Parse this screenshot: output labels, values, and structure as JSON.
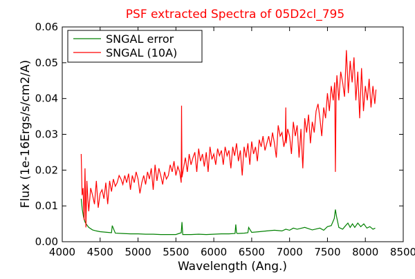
{
  "chart_data": {
    "type": "line",
    "title": "PSF extracted Spectra of 05D2cl_795",
    "title_color": "#ff0000",
    "xlabel": "Wavelength (Ang.)",
    "ylabel": "Flux (1e-16Ergs/s/cm2/A)",
    "xlim": [
      4000,
      8500
    ],
    "ylim": [
      0,
      0.06
    ],
    "xticks": [
      "4000",
      "4500",
      "5000",
      "5500",
      "6000",
      "6500",
      "7000",
      "7500",
      "8000",
      "8500"
    ],
    "yticks": [
      "0.00",
      "0.01",
      "0.02",
      "0.03",
      "0.04",
      "0.05",
      "0.06"
    ],
    "grid": false,
    "legend_position": "top-left",
    "series": [
      {
        "name": "SNGAL error",
        "color": "#008000",
        "x": [
          4250,
          4265,
          4280,
          4300,
          4320,
          4350,
          4400,
          4450,
          4500,
          4600,
          4650,
          4660,
          4700,
          4800,
          4900,
          5000,
          5100,
          5200,
          5300,
          5400,
          5500,
          5570,
          5580,
          5590,
          5700,
          5800,
          5900,
          6000,
          6100,
          6200,
          6280,
          6290,
          6300,
          6310,
          6400,
          6450,
          6460,
          6500,
          6600,
          6700,
          6800,
          6900,
          6950,
          7000,
          7050,
          7100,
          7200,
          7300,
          7400,
          7450,
          7500,
          7550,
          7590,
          7605,
          7620,
          7650,
          7700,
          7740,
          7770,
          7800,
          7830,
          7860,
          7900,
          7940,
          7980,
          8020,
          8060,
          8100,
          8130
        ],
        "values": [
          0.012,
          0.009,
          0.007,
          0.0055,
          0.0048,
          0.004,
          0.0033,
          0.003,
          0.0028,
          0.0026,
          0.0025,
          0.0045,
          0.0024,
          0.0023,
          0.0022,
          0.0022,
          0.0021,
          0.0021,
          0.002,
          0.002,
          0.002,
          0.0025,
          0.0055,
          0.002,
          0.002,
          0.0021,
          0.002,
          0.0021,
          0.0022,
          0.0022,
          0.0023,
          0.0048,
          0.0025,
          0.0023,
          0.0024,
          0.0025,
          0.004,
          0.0026,
          0.0028,
          0.003,
          0.0032,
          0.003,
          0.0035,
          0.0032,
          0.0038,
          0.0035,
          0.004,
          0.0033,
          0.0038,
          0.0032,
          0.0042,
          0.0045,
          0.0065,
          0.009,
          0.007,
          0.004,
          0.0035,
          0.0045,
          0.0052,
          0.004,
          0.005,
          0.004,
          0.0052,
          0.0042,
          0.005,
          0.0038,
          0.0042,
          0.0035,
          0.0038
        ]
      },
      {
        "name": "SNGAL (10A)",
        "color": "#ff0000",
        "x": [
          4250,
          4262,
          4275,
          4288,
          4300,
          4312,
          4325,
          4338,
          4350,
          4375,
          4400,
          4425,
          4450,
          4475,
          4500,
          4525,
          4550,
          4575,
          4600,
          4625,
          4650,
          4675,
          4700,
          4725,
          4750,
          4775,
          4800,
          4825,
          4850,
          4875,
          4900,
          4925,
          4950,
          4975,
          5000,
          5025,
          5050,
          5075,
          5100,
          5125,
          5150,
          5175,
          5200,
          5225,
          5250,
          5275,
          5300,
          5325,
          5350,
          5375,
          5400,
          5425,
          5450,
          5475,
          5500,
          5525,
          5550,
          5570,
          5575,
          5580,
          5600,
          5625,
          5650,
          5675,
          5700,
          5725,
          5750,
          5775,
          5800,
          5825,
          5850,
          5875,
          5900,
          5925,
          5950,
          5975,
          6000,
          6025,
          6050,
          6075,
          6100,
          6125,
          6150,
          6175,
          6200,
          6225,
          6250,
          6275,
          6300,
          6325,
          6350,
          6375,
          6400,
          6425,
          6450,
          6475,
          6500,
          6525,
          6550,
          6575,
          6600,
          6625,
          6650,
          6675,
          6700,
          6725,
          6750,
          6775,
          6800,
          6825,
          6850,
          6875,
          6900,
          6925,
          6945,
          6950,
          6955,
          6975,
          7000,
          7025,
          7050,
          7075,
          7100,
          7125,
          7150,
          7175,
          7200,
          7225,
          7250,
          7275,
          7300,
          7325,
          7350,
          7375,
          7400,
          7425,
          7450,
          7475,
          7500,
          7525,
          7550,
          7575,
          7595,
          7605,
          7615,
          7625,
          7650,
          7675,
          7700,
          7725,
          7750,
          7775,
          7800,
          7825,
          7850,
          7875,
          7900,
          7925,
          7950,
          7975,
          8000,
          8025,
          8050,
          8075,
          8100,
          8125,
          8140
        ],
        "values": [
          0.0245,
          0.013,
          0.015,
          0.006,
          0.0205,
          0.004,
          0.017,
          0.012,
          0.0085,
          0.015,
          0.013,
          0.0105,
          0.017,
          0.0095,
          0.0135,
          0.0145,
          0.012,
          0.0165,
          0.0105,
          0.017,
          0.014,
          0.0175,
          0.0155,
          0.0165,
          0.0185,
          0.0175,
          0.016,
          0.0185,
          0.0165,
          0.019,
          0.0145,
          0.0185,
          0.0165,
          0.0195,
          0.0175,
          0.0135,
          0.0165,
          0.0185,
          0.016,
          0.0195,
          0.0175,
          0.0205,
          0.0145,
          0.0215,
          0.017,
          0.0205,
          0.0185,
          0.016,
          0.0195,
          0.0175,
          0.0185,
          0.0215,
          0.0195,
          0.0225,
          0.0185,
          0.021,
          0.0195,
          0.0165,
          0.038,
          0.018,
          0.0205,
          0.0235,
          0.0195,
          0.0245,
          0.0215,
          0.0235,
          0.025,
          0.0195,
          0.026,
          0.0225,
          0.0245,
          0.021,
          0.025,
          0.0195,
          0.0265,
          0.023,
          0.0245,
          0.0215,
          0.026,
          0.024,
          0.0255,
          0.0215,
          0.0265,
          0.024,
          0.0255,
          0.0205,
          0.0265,
          0.024,
          0.0275,
          0.0225,
          0.0255,
          0.0185,
          0.0265,
          0.0235,
          0.0275,
          0.0215,
          0.028,
          0.0245,
          0.0265,
          0.0225,
          0.0285,
          0.0265,
          0.0295,
          0.0255,
          0.0275,
          0.0295,
          0.0265,
          0.0305,
          0.0275,
          0.0235,
          0.0325,
          0.0295,
          0.0305,
          0.0265,
          0.0285,
          0.0375,
          0.0275,
          0.0315,
          0.0295,
          0.0245,
          0.0335,
          0.0295,
          0.0325,
          0.0235,
          0.0315,
          0.0205,
          0.0345,
          0.0305,
          0.0355,
          0.0275,
          0.0335,
          0.0305,
          0.0365,
          0.0385,
          0.0345,
          0.0295,
          0.0375,
          0.0345,
          0.0415,
          0.0365,
          0.0435,
          0.0395,
          0.0445,
          0.0195,
          0.0415,
          0.0465,
          0.0395,
          0.0475,
          0.0445,
          0.0405,
          0.0535,
          0.0415,
          0.0505,
          0.0445,
          0.0515,
          0.0395,
          0.0475,
          0.0345,
          0.0485,
          0.0365,
          0.0435,
          0.0395,
          0.0455,
          0.0375,
          0.0435,
          0.0385,
          0.0425
        ]
      }
    ]
  }
}
